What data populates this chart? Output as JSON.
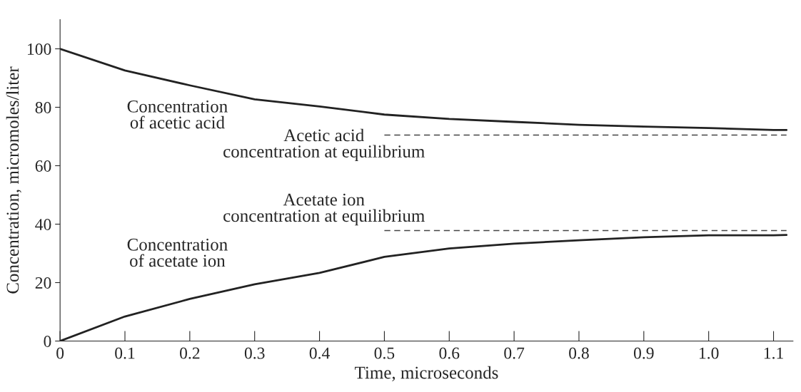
{
  "chart_data": {
    "type": "line",
    "xlabel": "Time, microseconds",
    "ylabel": "Concentration, micromoles/liter",
    "xlim": [
      0,
      1.13
    ],
    "ylim": [
      0,
      110
    ],
    "xticks": [
      0,
      0.1,
      0.2,
      0.3,
      0.4,
      0.5,
      0.6,
      0.7,
      0.8,
      0.9,
      {
        "value": 1.0,
        "label": "1.0"
      },
      1.1
    ],
    "yticks": [
      0,
      20,
      40,
      60,
      80,
      100
    ],
    "grid": false,
    "legend": false,
    "marker": "none",
    "series": [
      {
        "color": "#222222",
        "line_style": "solid",
        "x": [
          0,
          0.1,
          0.2,
          0.3,
          0.4,
          0.5,
          0.6,
          0.7,
          0.8,
          0.9,
          1.0,
          1.1,
          1.12
        ],
        "values": [
          100,
          92.6,
          87.5,
          82.7,
          80.3,
          77.5,
          76,
          75,
          74,
          73.4,
          72.9,
          72.2,
          72.2
        ]
      },
      {
        "color": "#222222",
        "line_style": "solid",
        "x": [
          0,
          0.1,
          0.2,
          0.3,
          0.4,
          0.5,
          0.6,
          0.7,
          0.8,
          0.9,
          1.0,
          1.1,
          1.12
        ],
        "values": [
          0,
          8.4,
          14.4,
          19.4,
          23.3,
          28.8,
          31.7,
          33.3,
          34.5,
          35.5,
          36.2,
          36.2,
          36.3
        ]
      },
      {
        "color": "#444444",
        "line_style": "dashed",
        "x": [
          0.5,
          1.12
        ],
        "values": [
          70.5,
          70.5
        ]
      },
      {
        "color": "#444444",
        "line_style": "dashed",
        "x": [
          0.5,
          1.12
        ],
        "values": [
          37.8,
          37.8
        ]
      }
    ],
    "annotations": [
      "Concentration\nof acetic acid",
      "Acetic acid\nconcentration at equilibrium",
      "Acetate ion\nconcentration at equilibrium",
      "Concentration\nof acetate ion"
    ]
  }
}
